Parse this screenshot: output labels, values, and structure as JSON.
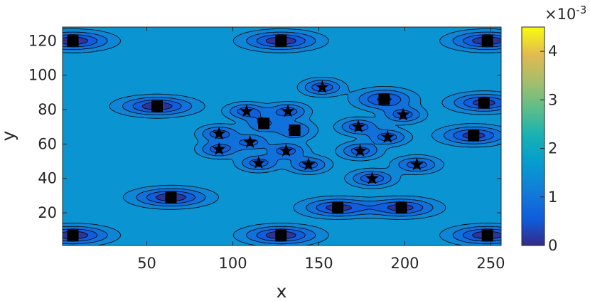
{
  "chart_data": {
    "type": "contour",
    "xlabel": "x",
    "ylabel": "y",
    "xlim": [
      1,
      256
    ],
    "ylim": [
      1,
      128
    ],
    "xticks": [
      50,
      100,
      150,
      200,
      250
    ],
    "yticks": [
      20,
      40,
      60,
      80,
      100,
      120
    ],
    "background_level": 1.55,
    "field_units_scale": "1e-3",
    "colorbar": {
      "range": [
        0,
        4.5
      ],
      "ticks": [
        0,
        1,
        2,
        3,
        4
      ],
      "exponent_label": "×10",
      "exponent_value": "-3",
      "colormap": "parula"
    },
    "contour_levels": [
      0.45,
      0.8,
      1.15,
      1.42
    ],
    "squares": [
      {
        "x": 7,
        "y": 120
      },
      {
        "x": 128,
        "y": 120
      },
      {
        "x": 248,
        "y": 120
      },
      {
        "x": 7,
        "y": 7
      },
      {
        "x": 128,
        "y": 7
      },
      {
        "x": 248,
        "y": 7
      },
      {
        "x": 56,
        "y": 82
      },
      {
        "x": 64,
        "y": 29
      },
      {
        "x": 118,
        "y": 72
      },
      {
        "x": 136,
        "y": 68
      },
      {
        "x": 188,
        "y": 86
      },
      {
        "x": 246,
        "y": 84
      },
      {
        "x": 240,
        "y": 65
      },
      {
        "x": 161,
        "y": 23
      },
      {
        "x": 198,
        "y": 23
      }
    ],
    "stars": [
      {
        "x": 152,
        "y": 93
      },
      {
        "x": 108,
        "y": 79
      },
      {
        "x": 132,
        "y": 79
      },
      {
        "x": 92,
        "y": 66
      },
      {
        "x": 92,
        "y": 57
      },
      {
        "x": 110,
        "y": 61
      },
      {
        "x": 131,
        "y": 56
      },
      {
        "x": 115,
        "y": 49
      },
      {
        "x": 144,
        "y": 48
      },
      {
        "x": 173,
        "y": 70
      },
      {
        "x": 174,
        "y": 56
      },
      {
        "x": 190,
        "y": 64
      },
      {
        "x": 199,
        "y": 77
      },
      {
        "x": 207,
        "y": 48
      },
      {
        "x": 181,
        "y": 40
      }
    ],
    "sources": [
      {
        "x": 7,
        "y": 120,
        "a": 1.4,
        "sx": 18,
        "sy": 4.5
      },
      {
        "x": 128,
        "y": 120,
        "a": 1.4,
        "sx": 18,
        "sy": 4.5
      },
      {
        "x": 248,
        "y": 120,
        "a": 1.4,
        "sx": 18,
        "sy": 4.5
      },
      {
        "x": 7,
        "y": 7,
        "a": 1.4,
        "sx": 18,
        "sy": 4.5
      },
      {
        "x": 128,
        "y": 7,
        "a": 1.4,
        "sx": 18,
        "sy": 4.5
      },
      {
        "x": 248,
        "y": 7,
        "a": 1.4,
        "sx": 18,
        "sy": 4.5
      },
      {
        "x": 56,
        "y": 82,
        "a": 1.4,
        "sx": 18,
        "sy": 4.5
      },
      {
        "x": 64,
        "y": 29,
        "a": 1.4,
        "sx": 18,
        "sy": 4.5
      },
      {
        "x": 161,
        "y": 23,
        "a": 1.3,
        "sx": 17,
        "sy": 4.5
      },
      {
        "x": 198,
        "y": 23,
        "a": 1.3,
        "sx": 17,
        "sy": 4.5
      },
      {
        "x": 246,
        "y": 84,
        "a": 1.3,
        "sx": 16,
        "sy": 4.5
      },
      {
        "x": 240,
        "y": 65,
        "a": 1.3,
        "sx": 16,
        "sy": 4.5
      },
      {
        "x": 188,
        "y": 86,
        "a": 1.2,
        "sx": 14,
        "sy": 5
      },
      {
        "x": 118,
        "y": 72,
        "a": 0.8,
        "sx": 10,
        "sy": 5
      },
      {
        "x": 136,
        "y": 68,
        "a": 0.8,
        "sx": 10,
        "sy": 5
      },
      {
        "x": 152,
        "y": 93,
        "a": 1.1,
        "sx": 10,
        "sy": 4
      },
      {
        "x": 108,
        "y": 79,
        "a": 1.0,
        "sx": 10,
        "sy": 4
      },
      {
        "x": 132,
        "y": 79,
        "a": 1.0,
        "sx": 10,
        "sy": 4
      },
      {
        "x": 92,
        "y": 66,
        "a": 1.0,
        "sx": 10,
        "sy": 4
      },
      {
        "x": 92,
        "y": 57,
        "a": 1.0,
        "sx": 10,
        "sy": 4
      },
      {
        "x": 110,
        "y": 61,
        "a": 0.9,
        "sx": 10,
        "sy": 4
      },
      {
        "x": 131,
        "y": 56,
        "a": 1.0,
        "sx": 10,
        "sy": 4
      },
      {
        "x": 115,
        "y": 49,
        "a": 1.0,
        "sx": 10,
        "sy": 4
      },
      {
        "x": 144,
        "y": 48,
        "a": 1.0,
        "sx": 10,
        "sy": 4
      },
      {
        "x": 173,
        "y": 70,
        "a": 1.0,
        "sx": 10,
        "sy": 4
      },
      {
        "x": 174,
        "y": 56,
        "a": 1.0,
        "sx": 10,
        "sy": 4
      },
      {
        "x": 190,
        "y": 64,
        "a": 1.0,
        "sx": 10,
        "sy": 4
      },
      {
        "x": 199,
        "y": 77,
        "a": 1.0,
        "sx": 10,
        "sy": 4
      },
      {
        "x": 207,
        "y": 48,
        "a": 1.0,
        "sx": 11,
        "sy": 4
      },
      {
        "x": 181,
        "y": 40,
        "a": 1.1,
        "sx": 11,
        "sy": 4
      }
    ]
  }
}
